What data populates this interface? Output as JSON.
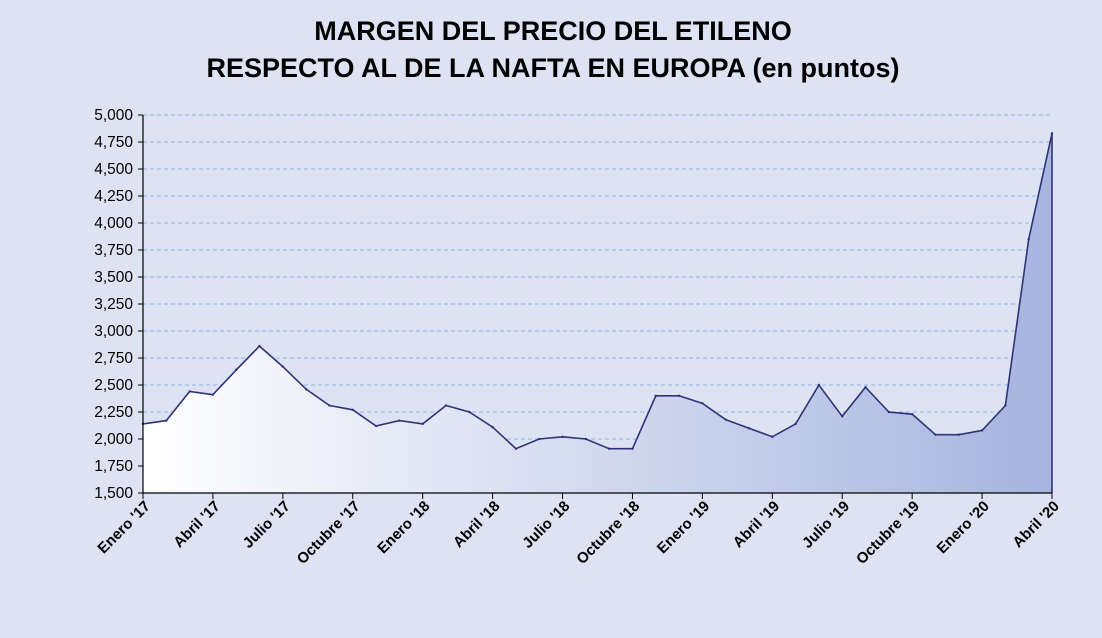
{
  "chart_data": {
    "type": "area",
    "title_lines": [
      "MARGEN DEL PRECIO DEL ETILENO",
      "RESPECTO  AL DE LA NAFTA EN  EUROPA (en puntos)"
    ],
    "xlabel": "",
    "ylabel": "",
    "ylim": [
      1500,
      5000
    ],
    "ytick_step": 250,
    "ytick_labels": [
      "1,500",
      "1,750",
      "2,000",
      "2,250",
      "2,500",
      "2,750",
      "3,000",
      "3,250",
      "3,500",
      "3,750",
      "4,000",
      "4,250",
      "4,500",
      "4,750",
      "5,000"
    ],
    "grid": true,
    "x_ticks": [
      {
        "index": 0,
        "label": "Enero '17"
      },
      {
        "index": 3,
        "label": "Abril '17"
      },
      {
        "index": 6,
        "label": "Julio '17"
      },
      {
        "index": 9,
        "label": "Octubre '17"
      },
      {
        "index": 12,
        "label": "Enero '18"
      },
      {
        "index": 15,
        "label": "Abril '18"
      },
      {
        "index": 18,
        "label": "Julio '18"
      },
      {
        "index": 21,
        "label": "Octubre '18"
      },
      {
        "index": 24,
        "label": "Enero '19"
      },
      {
        "index": 27,
        "label": "Abril '19"
      },
      {
        "index": 30,
        "label": "Julio '19"
      },
      {
        "index": 33,
        "label": "Octubre '19"
      },
      {
        "index": 36,
        "label": "Enero '20"
      },
      {
        "index": 39,
        "label": "Abril '20"
      }
    ],
    "series": [
      {
        "values": [
          2140,
          2170,
          2440,
          2410,
          2640,
          2860,
          2670,
          2460,
          2310,
          2270,
          2120,
          2170,
          2140,
          2310,
          2250,
          2110,
          1910,
          2000,
          2020,
          2000,
          1910,
          1910,
          2400,
          2400,
          2330,
          2180,
          2100,
          2020,
          2140,
          2500,
          2210,
          2480,
          2250,
          2230,
          2040,
          2040,
          2080,
          2310,
          3850,
          4830
        ]
      }
    ],
    "colors": {
      "line": "#2f3378",
      "fill_left": "#ffffff",
      "fill_right": "#a6b4df",
      "grid": "#8fb3ee",
      "background": "#dde3f2"
    }
  }
}
